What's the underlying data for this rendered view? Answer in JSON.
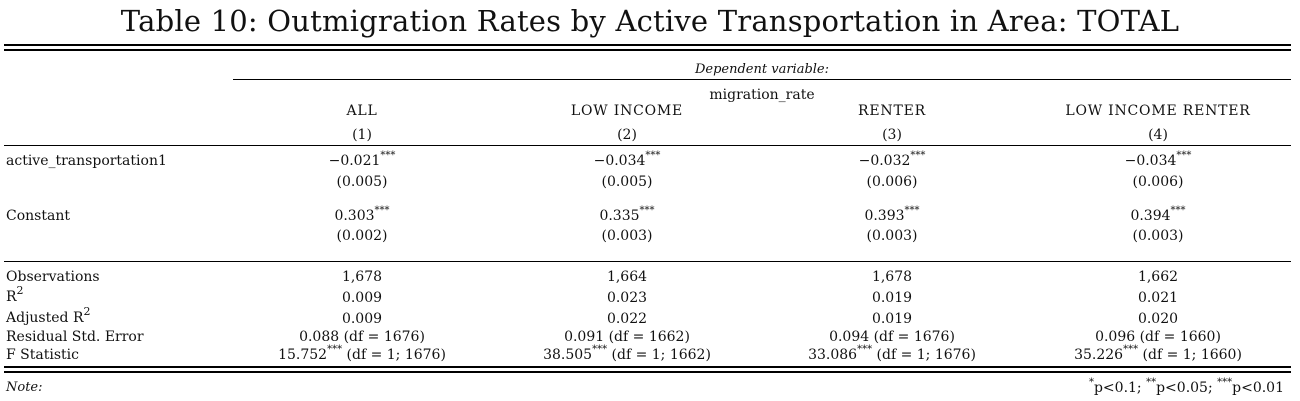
{
  "title": "Table 10: Outmigration Rates by Active Transportation in Area: TOTAL",
  "dependent_variable_label": "Dependent variable:",
  "dependent_variable": "migration_rate",
  "columns": [
    {
      "name": "ALL",
      "number": "(1)"
    },
    {
      "name": "LOW INCOME",
      "number": "(2)"
    },
    {
      "name": "RENTER",
      "number": "(3)"
    },
    {
      "name": "LOW INCOME RENTER",
      "number": "(4)"
    }
  ],
  "coefficients": [
    {
      "label": "active_transportation1",
      "values": [
        "−0.021",
        "−0.034",
        "−0.032",
        "−0.034"
      ],
      "stars": [
        "***",
        "***",
        "***",
        "***"
      ],
      "se": [
        "(0.005)",
        "(0.005)",
        "(0.006)",
        "(0.006)"
      ]
    },
    {
      "label": "Constant",
      "values": [
        "0.303",
        "0.335",
        "0.393",
        "0.394"
      ],
      "stars": [
        "***",
        "***",
        "***",
        "***"
      ],
      "se": [
        "(0.002)",
        "(0.003)",
        "(0.003)",
        "(0.003)"
      ]
    }
  ],
  "stats": {
    "observations": {
      "label": "Observations",
      "values": [
        "1,678",
        "1,664",
        "1,678",
        "1,662"
      ]
    },
    "r2": {
      "label_base": "R",
      "label_sup": "2",
      "values": [
        "0.009",
        "0.023",
        "0.019",
        "0.021"
      ]
    },
    "adj_r2": {
      "label_base": "Adjusted R",
      "label_sup": "2",
      "values": [
        "0.009",
        "0.022",
        "0.019",
        "0.020"
      ]
    },
    "rse": {
      "label": "Residual Std. Error",
      "values": [
        "0.088 (df = 1676)",
        "0.091 (df = 1662)",
        "0.094 (df = 1676)",
        "0.096 (df = 1660)"
      ]
    },
    "fstat": {
      "label": "F Statistic",
      "values": [
        "15.752",
        "38.505",
        "33.086",
        "35.226"
      ],
      "stars": [
        "***",
        "***",
        "***",
        "***"
      ],
      "df": [
        "(df = 1; 1676)",
        "(df = 1; 1662)",
        "(df = 1; 1676)",
        "(df = 1; 1660)"
      ]
    }
  },
  "note": {
    "label": "Note:",
    "s1": "*",
    "t1": "p<0.1; ",
    "s2": "**",
    "t2": "p<0.05; ",
    "s3": "***",
    "t3": "p<0.01"
  }
}
